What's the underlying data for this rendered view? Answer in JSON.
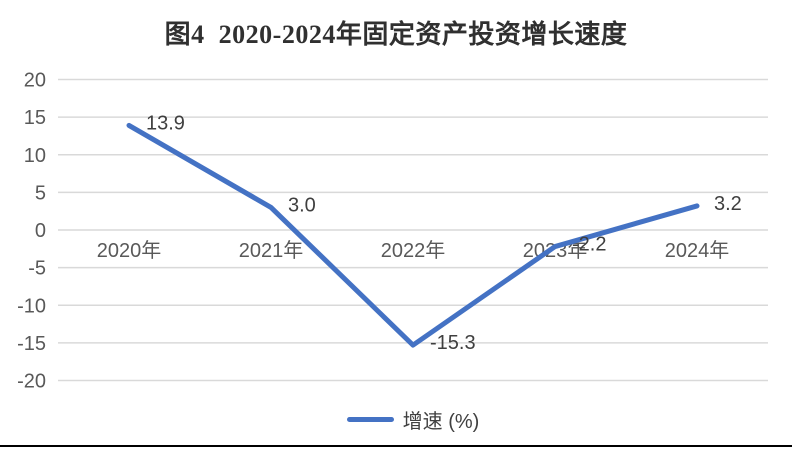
{
  "title": "图4  2020-2024年固定资产投资增长速度",
  "chart_data": {
    "type": "line",
    "title": "图4  2020-2024年固定资产投资增长速度",
    "categories": [
      "2020年",
      "2021年",
      "2022年",
      "2023年",
      "2024年"
    ],
    "series": [
      {
        "name": "增速 (%)",
        "values": [
          13.9,
          3.0,
          -15.3,
          -2.2,
          3.2
        ]
      }
    ],
    "data_labels": [
      "13.9",
      "3.0",
      "-15.3",
      "-2.2",
      "3.2"
    ],
    "y_ticks": [
      20,
      15,
      10,
      5,
      0,
      -5,
      -10,
      -15,
      -20
    ],
    "ylim": [
      -20,
      20
    ],
    "xlabel": "",
    "ylabel": "",
    "grid": true,
    "legend_position": "bottom",
    "legend_label": "增速 (%)",
    "x_axis_label_position": "below zero line",
    "colors": {
      "line": "#4472C4",
      "gridline": "#D9D9D9",
      "axis_text": "#595959",
      "data_label_text": "#3f3f3f",
      "title_text": "#303030",
      "bottom_rule": "#000000"
    }
  }
}
